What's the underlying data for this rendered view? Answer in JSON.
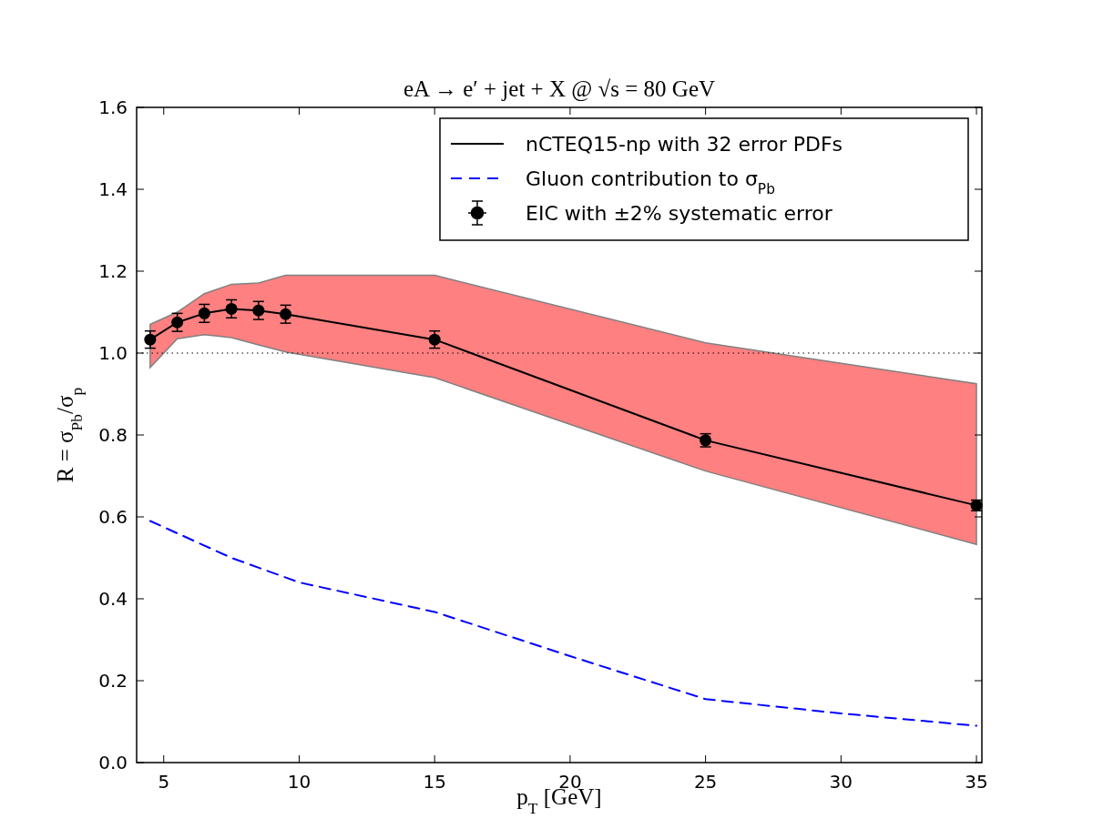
{
  "chart_data": {
    "type": "line",
    "title": "eA → e′ + jet + X @ √s = 80 GeV",
    "xlabel": "p$_{T}$ [GeV]",
    "ylabel": "R = σ$_{Pb}$/σ$_{p}$",
    "x": [
      4.5,
      5.5,
      6.5,
      7.5,
      8.5,
      9.5,
      15,
      25,
      35
    ],
    "series": [
      {
        "name": "nCTEQ15-np with 32 error PDFs",
        "color": "#000000",
        "marker": "none",
        "line_style": "solid",
        "values": [
          1.033,
          1.075,
          1.097,
          1.108,
          1.104,
          1.095,
          1.033,
          0.787,
          0.628
        ],
        "lower": [
          0.965,
          1.035,
          1.045,
          1.038,
          1.02,
          1.003,
          0.94,
          0.712,
          0.533
        ],
        "upper": [
          1.07,
          1.1,
          1.145,
          1.168,
          1.171,
          1.19,
          1.19,
          1.025,
          0.925
        ]
      },
      {
        "name": "Gluon contribution to σ$_{Pb}$",
        "color": "#0000ff",
        "marker": "none",
        "line_style": "dashed",
        "x": [
          4.5,
          7.5,
          10,
          15,
          20,
          25,
          30,
          35
        ],
        "values": [
          0.59,
          0.5,
          0.44,
          0.368,
          0.26,
          0.155,
          0.12,
          0.09
        ]
      },
      {
        "name": "EIC with ±2% systematic error",
        "type": "scatter",
        "color": "#000000",
        "marker": "circle",
        "values": [
          1.033,
          1.075,
          1.097,
          1.108,
          1.104,
          1.095,
          1.033,
          0.787,
          0.628
        ],
        "errors": [
          0.021,
          0.022,
          0.022,
          0.022,
          0.022,
          0.022,
          0.021,
          0.016,
          0.013
        ]
      }
    ],
    "xlim": [
      4,
      35.2
    ],
    "xticks": [
      5,
      10,
      15,
      20,
      25,
      30,
      35
    ],
    "ylim": [
      0,
      1.6
    ],
    "yticks": [
      {
        "value": 0,
        "label": "0.0"
      },
      {
        "value": 0.2,
        "label": "0.2"
      },
      {
        "value": 0.4,
        "label": "0.4"
      },
      {
        "value": 0.6,
        "label": "0.6"
      },
      {
        "value": 0.8,
        "label": "0.8"
      },
      {
        "value": 1,
        "label": "1.0"
      },
      {
        "value": 1.2,
        "label": "1.2"
      },
      {
        "value": 1.4,
        "label": "1.4"
      },
      {
        "value": 1.6,
        "label": "1.6"
      }
    ],
    "ref_lines": [
      {
        "axis": "y",
        "value": 1,
        "color": "#000000",
        "line_style": "dotted"
      }
    ],
    "grid": false,
    "legend": "top right"
  }
}
